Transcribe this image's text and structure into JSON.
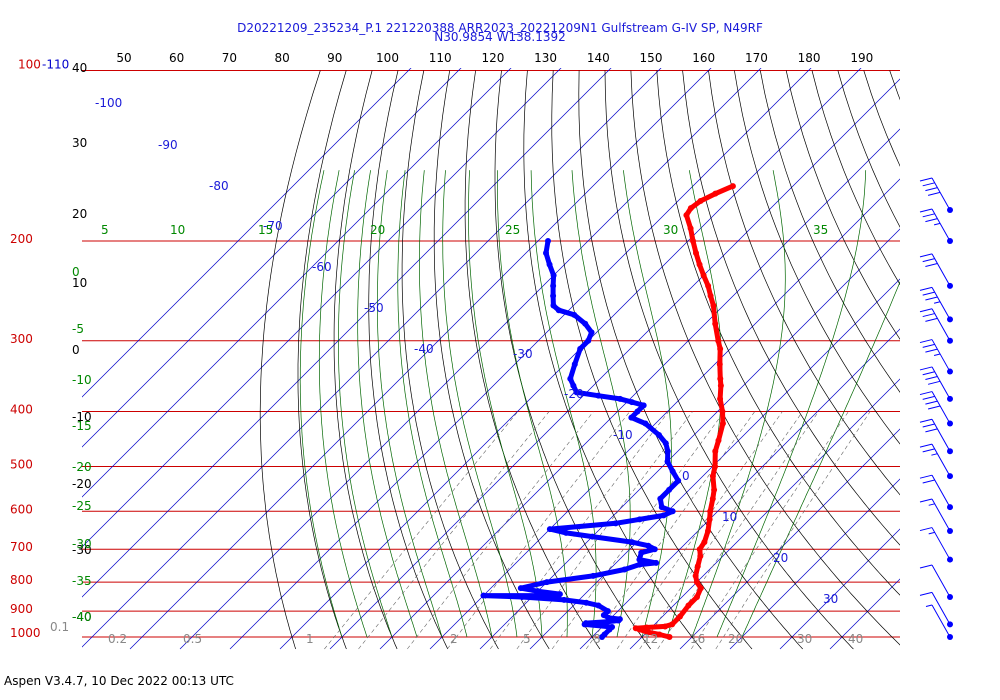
{
  "header": {
    "title_line1": "D20221209_235234_P.1 221220388 ARR2023_20221209N1 Gulfstream G-IV SP, N49RF",
    "title_line2": "N30.9854 W138.1392"
  },
  "footer": {
    "text": "Aspen V3.4.7, 10 Dec 2022  00:13 UTC"
  },
  "colors": {
    "temperature": "#ff0000",
    "dewpoint": "#0000ff",
    "isobar": "#cc0000",
    "isotherm": "#0000cc",
    "dry_adiabat": "#000000",
    "moist_adiabat": "#006600",
    "mixing_ratio": "#666666",
    "wind_barb": "#0000ff"
  },
  "chart_data": {
    "type": "skew-t log-p",
    "pressure_axis": {
      "scale": "log",
      "range": [
        1000,
        100
      ],
      "tick_labels": [
        "100-110",
        "200",
        "300",
        "400",
        "500",
        "600",
        "700",
        "800",
        "900",
        "1000"
      ]
    },
    "top_axis": {
      "tick_labels": [
        "50",
        "60",
        "70",
        "80",
        "90",
        "100",
        "110",
        "120",
        "130",
        "140",
        "150",
        "160",
        "170",
        "180",
        "190"
      ]
    },
    "left_inner_axis": {
      "tick_labels": [
        "40",
        "30",
        "20",
        "10",
        "0",
        "-10",
        "-20",
        "-30",
        "-40"
      ]
    },
    "isotherm_labels": [
      "-100",
      "-90",
      "-80",
      "-70",
      "-60",
      "-50",
      "-40",
      "-30",
      "-20",
      "-10",
      "0",
      "10",
      "20",
      "30"
    ],
    "moist_adiabat_labels_top": [
      "5",
      "10",
      "15",
      "20",
      "25",
      "30",
      "35"
    ],
    "moist_adiabat_labels_left": [
      "0",
      "-5",
      "-10",
      "-15",
      "-20",
      "-25",
      "-30",
      "-35",
      "-40"
    ],
    "mixing_ratio_labels": [
      "0.1",
      "0.2",
      "0.5",
      "1",
      "2",
      "5",
      "8",
      "12",
      "16",
      "20",
      "30",
      "40"
    ],
    "temperature_profile": {
      "name": "",
      "points": [
        [
          1000,
          25.5
        ],
        [
          990,
          23
        ],
        [
          980,
          20
        ],
        [
          970,
          18
        ],
        [
          965,
          17
        ],
        [
          962,
          19
        ],
        [
          958,
          22.5
        ],
        [
          950,
          23.5
        ],
        [
          920,
          23.5
        ],
        [
          880,
          23
        ],
        [
          850,
          23
        ],
        [
          820,
          22
        ],
        [
          800,
          20
        ],
        [
          780,
          18.5
        ],
        [
          750,
          17
        ],
        [
          720,
          15.5
        ],
        [
          700,
          14
        ],
        [
          680,
          13.5
        ],
        [
          650,
          12
        ],
        [
          620,
          10
        ],
        [
          600,
          8.5
        ],
        [
          570,
          6.5
        ],
        [
          550,
          5
        ],
        [
          520,
          2
        ],
        [
          500,
          0.5
        ],
        [
          470,
          -2.5
        ],
        [
          450,
          -4
        ],
        [
          420,
          -6.5
        ],
        [
          400,
          -9
        ],
        [
          380,
          -12
        ],
        [
          360,
          -14.5
        ],
        [
          350,
          -16
        ],
        [
          330,
          -19
        ],
        [
          310,
          -22
        ],
        [
          300,
          -24
        ],
        [
          280,
          -28
        ],
        [
          260,
          -32
        ],
        [
          250,
          -34.5
        ],
        [
          240,
          -37
        ],
        [
          230,
          -40
        ],
        [
          220,
          -43
        ],
        [
          210,
          -46
        ],
        [
          200,
          -49
        ],
        [
          190,
          -52
        ],
        [
          180,
          -55.5
        ],
        [
          175,
          -56
        ],
        [
          170,
          -55.5
        ],
        [
          165,
          -54
        ],
        [
          160,
          -52
        ]
      ]
    },
    "dewpoint_profile": {
      "name": "",
      "points": [
        [
          1000,
          12
        ],
        [
          990,
          12
        ],
        [
          970,
          12
        ],
        [
          960,
          12
        ],
        [
          950,
          6
        ],
        [
          945,
          6
        ],
        [
          940,
          10
        ],
        [
          935,
          12
        ],
        [
          930,
          12
        ],
        [
          925,
          9.5
        ],
        [
          915,
          8
        ],
        [
          900,
          8
        ],
        [
          880,
          5
        ],
        [
          870,
          2
        ],
        [
          860,
          -3
        ],
        [
          850,
          -12
        ],
        [
          845,
          -20
        ],
        [
          845,
          -5
        ],
        [
          840,
          -5
        ],
        [
          830,
          -10
        ],
        [
          820,
          -14
        ],
        [
          800,
          -10
        ],
        [
          780,
          -2
        ],
        [
          760,
          3
        ],
        [
          745,
          5
        ],
        [
          740,
          8
        ],
        [
          730,
          4
        ],
        [
          710,
          3
        ],
        [
          700,
          5
        ],
        [
          690,
          3
        ],
        [
          680,
          -1
        ],
        [
          665,
          -10
        ],
        [
          655,
          -16
        ],
        [
          645,
          -20
        ],
        [
          630,
          -8
        ],
        [
          620,
          -4
        ],
        [
          610,
          0
        ],
        [
          600,
          1
        ],
        [
          590,
          -2
        ],
        [
          570,
          -4
        ],
        [
          550,
          -4
        ],
        [
          530,
          -4
        ],
        [
          510,
          -7
        ],
        [
          490,
          -10
        ],
        [
          470,
          -12
        ],
        [
          455,
          -14
        ],
        [
          440,
          -17
        ],
        [
          420,
          -22
        ],
        [
          410,
          -26
        ],
        [
          400,
          -26
        ],
        [
          390,
          -26
        ],
        [
          385,
          -29
        ],
        [
          380,
          -32
        ],
        [
          375,
          -37
        ],
        [
          370,
          -42
        ],
        [
          360,
          -44
        ],
        [
          350,
          -46
        ],
        [
          330,
          -48
        ],
        [
          310,
          -50
        ],
        [
          300,
          -50
        ],
        [
          290,
          -51
        ],
        [
          280,
          -54
        ],
        [
          270,
          -58
        ],
        [
          265,
          -62
        ],
        [
          260,
          -64
        ],
        [
          250,
          -66
        ],
        [
          240,
          -68
        ],
        [
          230,
          -70
        ],
        [
          220,
          -73
        ],
        [
          210,
          -76
        ],
        [
          200,
          -78
        ]
      ]
    },
    "wind_barbs": {
      "pressures": [
        160,
        200,
        240,
        275,
        300,
        340,
        380,
        420,
        470,
        520,
        590,
        650,
        730,
        850,
        950,
        1000
      ],
      "speeds_kt": [
        40,
        35,
        30,
        35,
        30,
        35,
        40,
        40,
        30,
        25,
        20,
        15,
        15,
        10,
        10,
        5
      ]
    }
  }
}
